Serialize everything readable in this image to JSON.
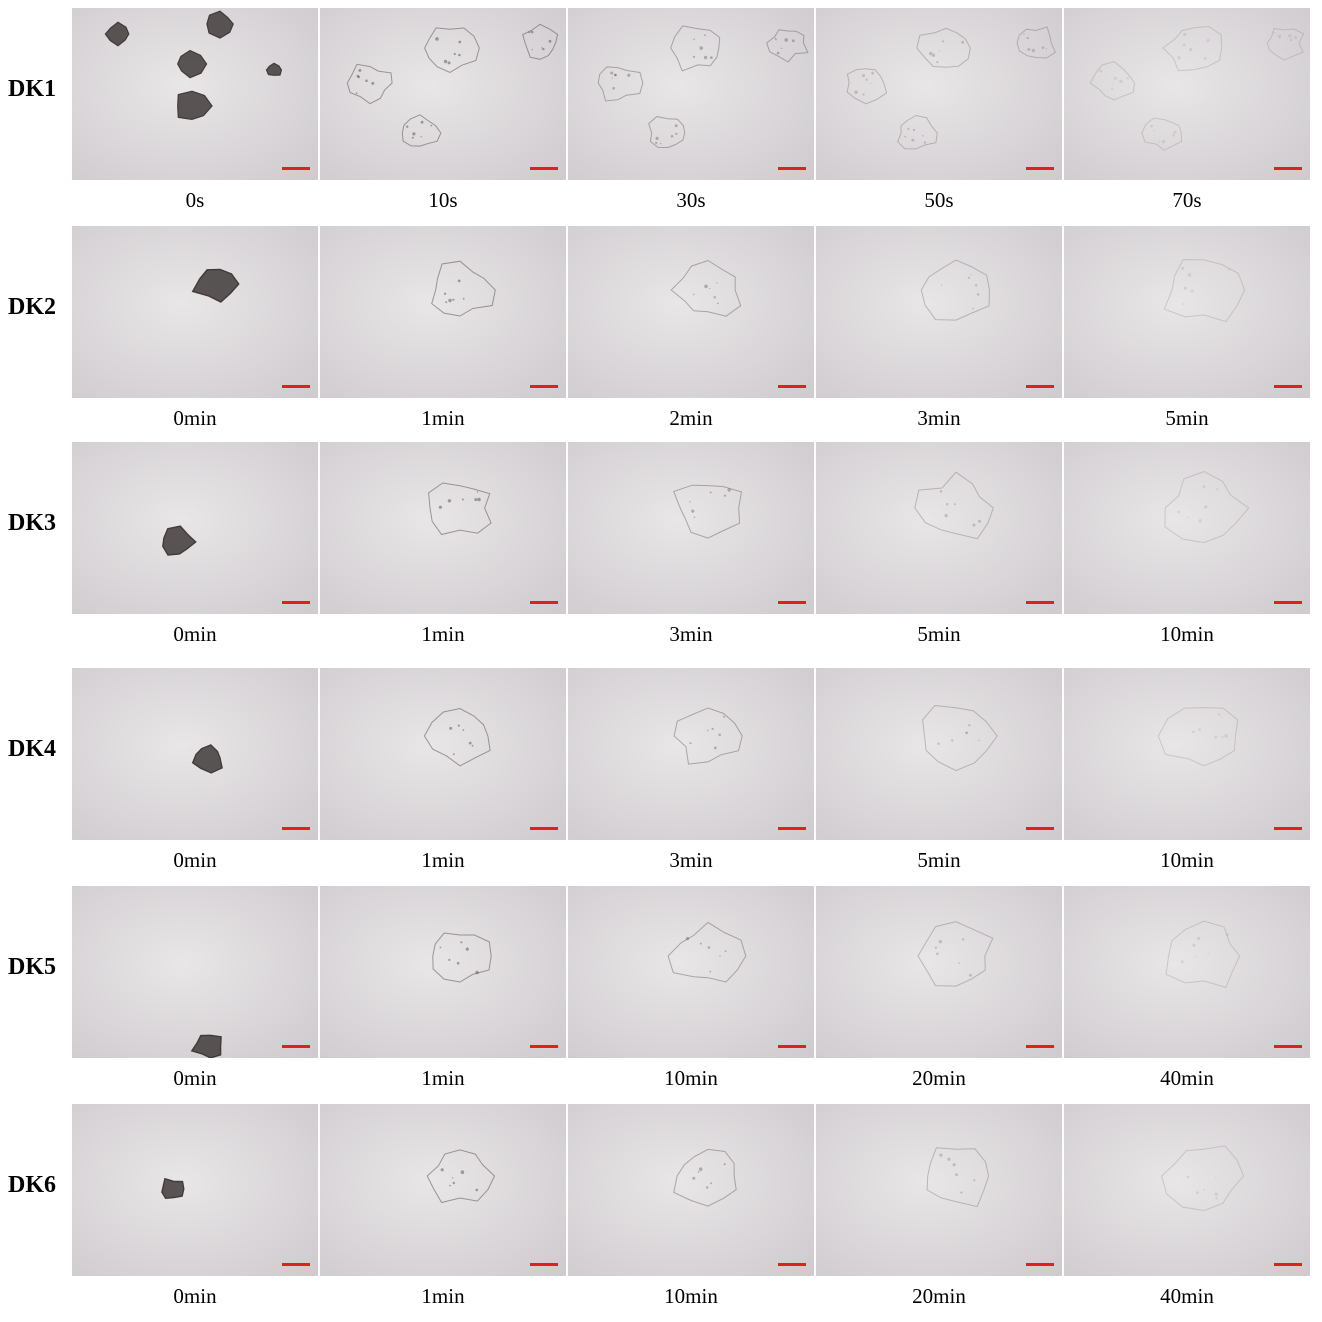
{
  "rows": [
    {
      "label": "DK1",
      "times": [
        "0s",
        "10s",
        "30s",
        "50s",
        "70s"
      ]
    },
    {
      "label": "DK2",
      "times": [
        "0min",
        "1min",
        "2min",
        "3min",
        "5min"
      ]
    },
    {
      "label": "DK3",
      "times": [
        "0min",
        "1min",
        "3min",
        "5min",
        "10min"
      ]
    },
    {
      "label": "DK4",
      "times": [
        "0min",
        "1min",
        "3min",
        "5min",
        "10min"
      ]
    },
    {
      "label": "DK5",
      "times": [
        "0min",
        "1min",
        "10min",
        "20min",
        "40min"
      ]
    },
    {
      "label": "DK6",
      "times": [
        "0min",
        "1min",
        "10min",
        "20min",
        "40min"
      ]
    }
  ],
  "colors": {
    "scale_bar": "#e0201a",
    "background_light": "#e9e6e8",
    "background_dark": "#cfcbce",
    "particle": "#4a4444"
  }
}
